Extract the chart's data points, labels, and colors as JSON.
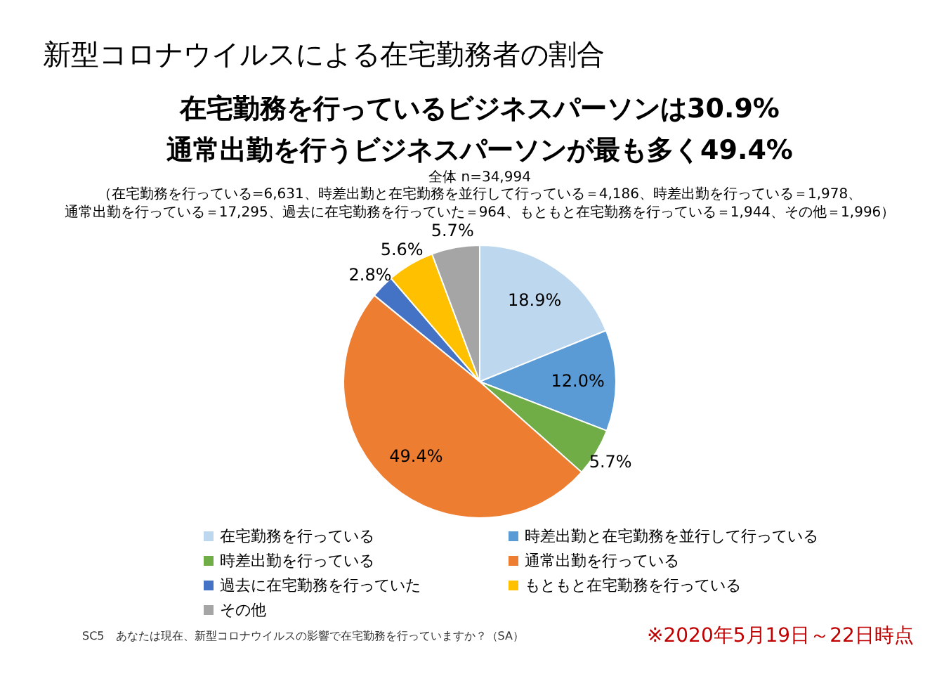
{
  "chart_data": {
    "type": "pie",
    "title": "新型コロナウイルスによる在宅勤務者の割合",
    "subtitle": "在宅勤務を行っているビジネスパーソンは30.9%\n通常出勤を行うビジネスパーソンが最も多く49.4%",
    "annotations": [
      "全体 n=34,994",
      "（在宅勤務を行っている=6,631、時差出勤と在宅勤務を並行して行っている＝4,186、時差出勤を行っている＝1,978、",
      "通常出勤を行っている＝17,295、過去に在宅勤務を行っていた＝964、もともと在宅勤務を行っている＝1,944、その他＝1,996）",
      "SC5　あなたは現在、新型コロナウイルスの影響で在宅勤務を行っていますか？（SA）",
      "※2020年5月19日～22日時点"
    ],
    "categories": [
      "在宅勤務を行っている",
      "時差出勤と在宅勤務を並行して行っている",
      "時差出勤を行っている",
      "通常出勤を行っている",
      "過去に在宅勤務を行っていた",
      "もともと在宅勤務を行っている",
      "その他"
    ],
    "values": [
      18.9,
      12.0,
      5.7,
      49.4,
      2.8,
      5.6,
      5.7
    ],
    "colors": [
      "#bdd7ee",
      "#5b9bd5",
      "#70ad47",
      "#ed7d31",
      "#4472c4",
      "#ffc000",
      "#a5a5a5"
    ],
    "value_labels": [
      "18.9%",
      "12.0%",
      "5.7%",
      "49.4%",
      "2.8%",
      "5.6%",
      "5.7%"
    ],
    "legend": "bottom"
  }
}
